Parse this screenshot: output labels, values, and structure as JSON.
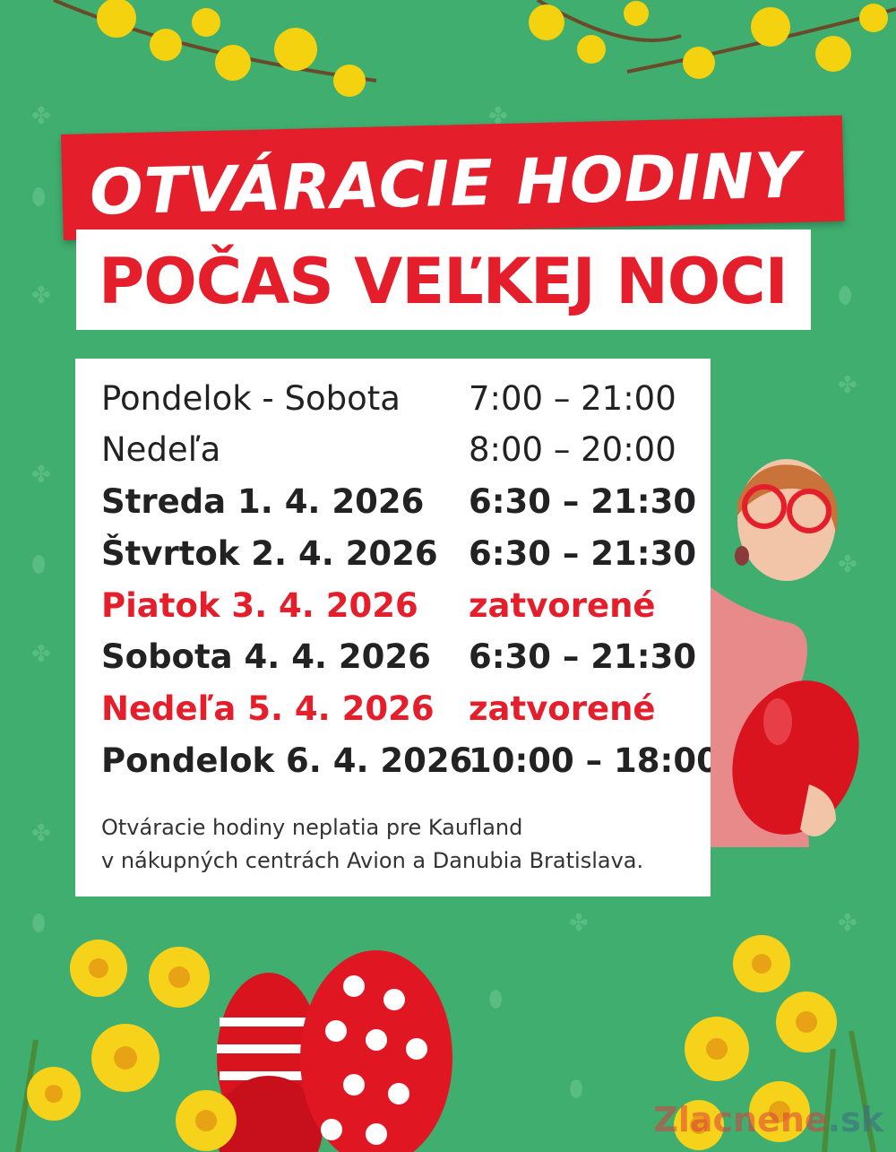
{
  "header": {
    "title_line1": "OTVÁRACIE HODINY",
    "title_line2": "POČAS VEĽKEJ NOCI"
  },
  "schedule": [
    {
      "day": "Pondelok - Sobota",
      "time": "7:00 – 21:00",
      "style": "regular"
    },
    {
      "day": "Nedeľa",
      "time": "8:00 – 20:00",
      "style": "regular"
    },
    {
      "day": "Streda 1. 4. 2026",
      "time": "6:30 – 21:30",
      "style": "bold"
    },
    {
      "day": "Štvrtok 2. 4. 2026",
      "time": "6:30 – 21:30",
      "style": "bold"
    },
    {
      "day": "Piatok 3. 4. 2026",
      "time": "zatvorené",
      "style": "closed"
    },
    {
      "day": "Sobota 4. 4. 2026",
      "time": "6:30 – 21:30",
      "style": "bold"
    },
    {
      "day": "Nedeľa 5. 4. 2026",
      "time": "zatvorené",
      "style": "closed"
    },
    {
      "day": "Pondelok 6. 4. 2026",
      "time": "10:00 – 18:00",
      "style": "bold"
    }
  ],
  "note": {
    "line1": "Otváracie hodiny neplatia pre Kaufland",
    "line2": "v nákupných centrách Avion a Danubia Bratislava."
  },
  "watermark": {
    "main": "Zlacnene",
    "suffix": ".sk"
  },
  "colors": {
    "background": "#3fae6f",
    "accent_red": "#e41e2b",
    "white": "#ffffff",
    "text": "#222222"
  }
}
